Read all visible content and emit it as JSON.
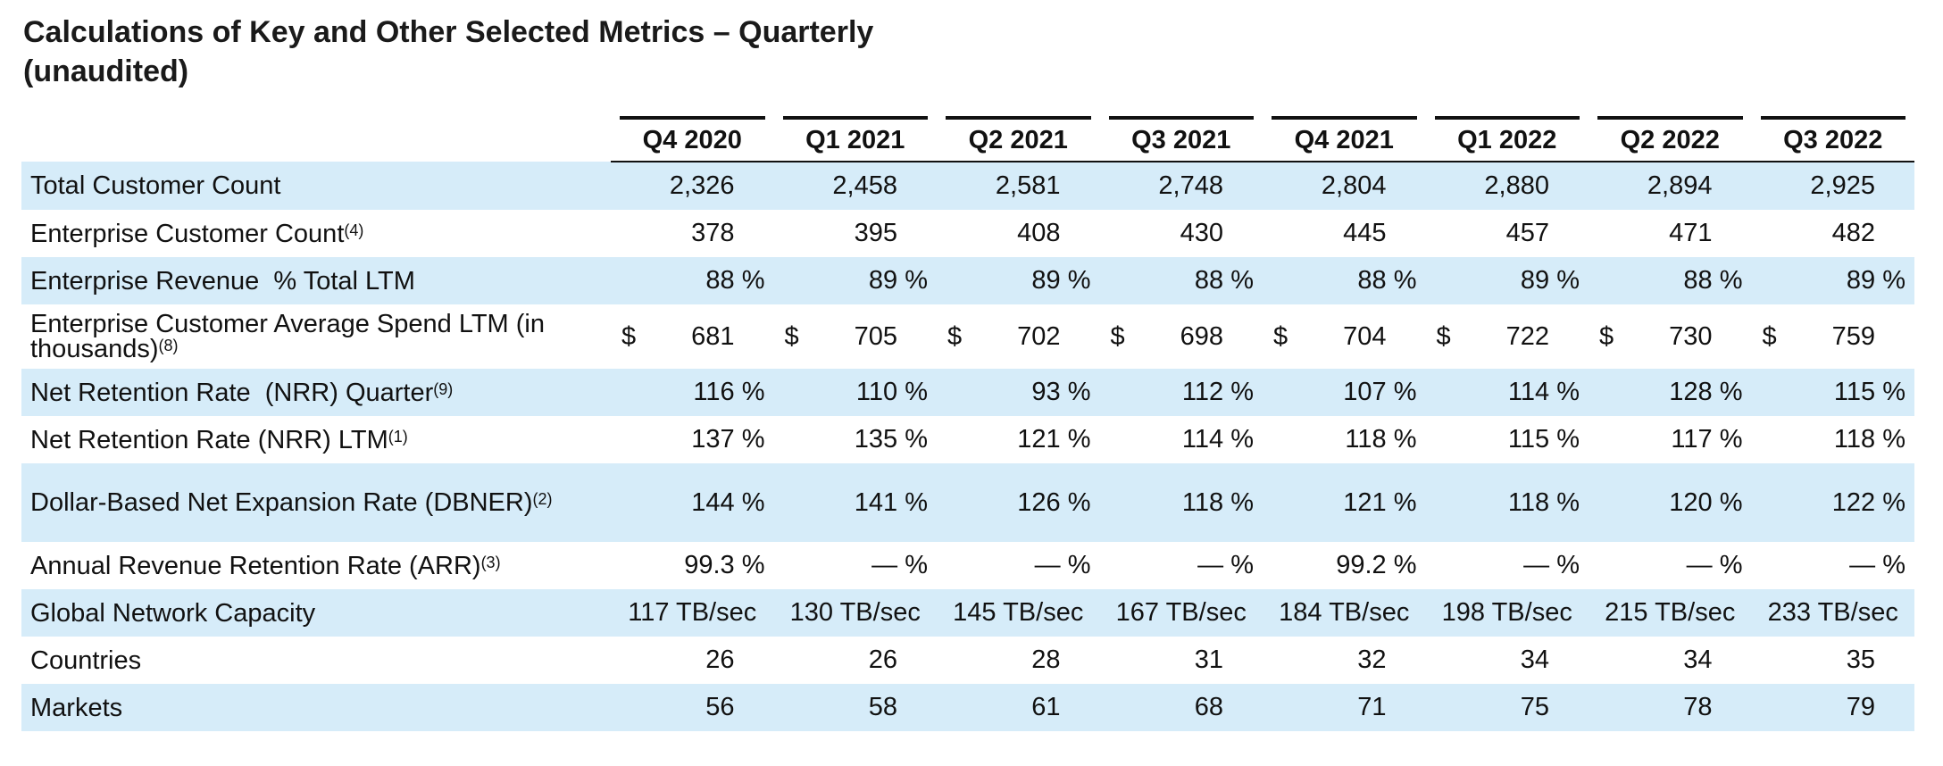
{
  "title": {
    "line1": "Calculations of Key and Other Selected Metrics – Quarterly",
    "line2": "(unaudited)"
  },
  "columns": [
    "Q4 2020",
    "Q1 2021",
    "Q2 2021",
    "Q3 2021",
    "Q4 2021",
    "Q1 2022",
    "Q2 2022",
    "Q3 2022"
  ],
  "rows": [
    {
      "label": "Total Customer Count",
      "note": "",
      "values": [
        "2,326",
        "2,458",
        "2,581",
        "2,748",
        "2,804",
        "2,880",
        "2,894",
        "2,925"
      ]
    },
    {
      "label": "Enterprise Customer Count",
      "note": "(4)",
      "values": [
        "378",
        "395",
        "408",
        "430",
        "445",
        "457",
        "471",
        "482"
      ]
    },
    {
      "label": "Enterprise Revenue  % Total LTM",
      "note": "",
      "values": [
        "88 %",
        "89 %",
        "89 %",
        "88 %",
        "88 %",
        "89 %",
        "88 %",
        "89 %"
      ]
    },
    {
      "label_line1": "Enterprise Customer Average Spend LTM (in",
      "label_line2": "thousands)",
      "note": "(8)",
      "currency": "$",
      "values": [
        "681",
        "705",
        "702",
        "698",
        "704",
        "722",
        "730",
        "759"
      ]
    },
    {
      "label": "Net Retention Rate  (NRR) Quarter",
      "note": "(9)",
      "values": [
        "116 %",
        "110 %",
        "93 %",
        "112 %",
        "107 %",
        "114 %",
        "128 %",
        "115 %"
      ]
    },
    {
      "label": "Net Retention Rate (NRR) LTM",
      "note": "(1)",
      "values": [
        "137 %",
        "135 %",
        "121 %",
        "114 %",
        "118 %",
        "115 %",
        "117 %",
        "118 %"
      ]
    },
    {
      "label": "Dollar-Based Net Expansion Rate (DBNER)",
      "note": "(2)",
      "values": [
        "144 %",
        "141 %",
        "126 %",
        "118 %",
        "121 %",
        "118 %",
        "120 %",
        "122 %"
      ]
    },
    {
      "label": "Annual Revenue Retention Rate (ARR)",
      "note": "(3)",
      "values": [
        "99.3 %",
        "— %",
        "— %",
        "— %",
        "99.2 %",
        "— %",
        "— %",
        "— %"
      ]
    },
    {
      "label": "Global Network Capacity",
      "note": "",
      "values": [
        "117 TB/sec",
        "130 TB/sec",
        "145 TB/sec",
        "167 TB/sec",
        "184 TB/sec",
        "198 TB/sec",
        "215 TB/sec",
        "233 TB/sec"
      ]
    },
    {
      "label": "Countries",
      "note": "",
      "values": [
        "26",
        "26",
        "28",
        "31",
        "32",
        "34",
        "34",
        "35"
      ]
    },
    {
      "label": "Markets",
      "note": "",
      "values": [
        "56",
        "58",
        "61",
        "68",
        "71",
        "75",
        "78",
        "79"
      ]
    }
  ],
  "colors": {
    "row_shade": "#d6ecf9",
    "text": "#111111"
  }
}
